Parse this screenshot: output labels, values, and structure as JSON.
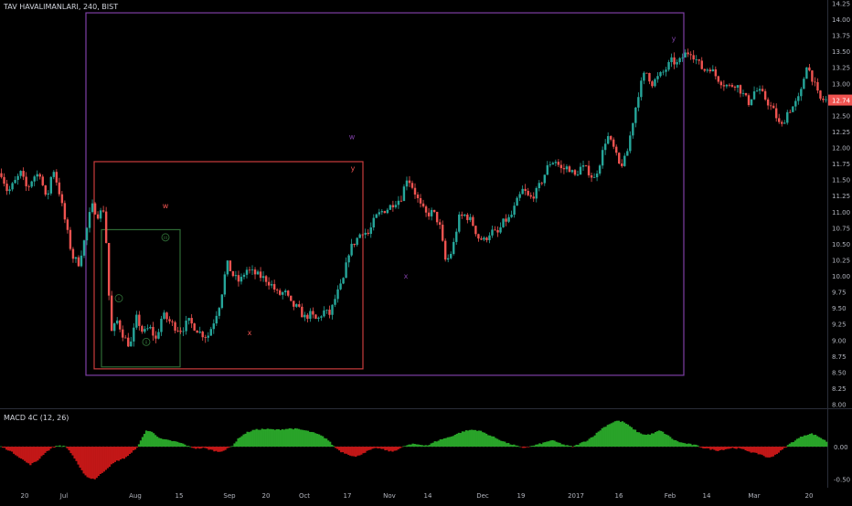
{
  "header": {
    "symbol": "TAV HAVALIMANLARI, 240, BIST"
  },
  "colors": {
    "bull": "#26a69a",
    "bear": "#ef5350",
    "purple": "#7e3fa5",
    "red_box": "#c93c3c",
    "green_box": "#2e6b35",
    "macd_up": "#29a329",
    "macd_down": "#c21717",
    "last_price_bg": "#ef5350"
  },
  "macd": {
    "label": "MACD 4C (12, 26)"
  },
  "chart_data": [
    {
      "type": "candlestick",
      "title": "TAV HAVALIMANLARI, 240, BIST",
      "x_tick_labels": [
        "20",
        "Jul",
        "Aug",
        "15",
        "Sep",
        "20",
        "Oct",
        "17",
        "Nov",
        "14",
        "Dec",
        "19",
        "2017",
        "16",
        "Feb",
        "14",
        "Mar",
        "20"
      ],
      "y_ticks": [
        14.25,
        14.0,
        13.75,
        13.5,
        13.25,
        13.0,
        12.75,
        12.5,
        12.25,
        12.0,
        11.75,
        11.5,
        11.25,
        11.0,
        10.75,
        10.5,
        10.25,
        10.0,
        9.75,
        9.5,
        9.25,
        9.0,
        8.75,
        8.5,
        8.25,
        8.0
      ],
      "y_tick_labels": [
        "14.25",
        "14.00",
        "13.75",
        "13.50",
        "13.25",
        "13.00",
        "12.75",
        "12.50",
        "12.25",
        "12.00",
        "11.75",
        "11.50",
        "11.25",
        "11.00",
        "10.75",
        "10.50",
        "10.25",
        "10.00",
        "9.75",
        "9.50",
        "9.25",
        "9.00",
        "8.75",
        "8.50",
        "8.25",
        "8.00"
      ],
      "ylim": [
        7.95,
        14.3
      ],
      "last_price": "12.74",
      "price_path": [
        11.6,
        11.3,
        11.45,
        11.6,
        11.35,
        11.55,
        11.6,
        11.15,
        11.7,
        11.3,
        10.8,
        10.3,
        10.2,
        10.6,
        11.1,
        10.95,
        11.05,
        9.1,
        9.3,
        9.05,
        8.9,
        9.35,
        9.1,
        9.2,
        9.0,
        9.4,
        9.3,
        9.2,
        9.15,
        9.3,
        9.2,
        9.1,
        9.05,
        9.3,
        9.6,
        10.2,
        10.0,
        9.9,
        10.1,
        10.05,
        10.0,
        9.95,
        9.85,
        9.7,
        9.75,
        9.55,
        9.5,
        9.35,
        9.4,
        9.3,
        9.45,
        9.4,
        9.7,
        9.9,
        10.4,
        10.55,
        10.7,
        10.65,
        10.9,
        11.0,
        11.05,
        11.15,
        11.2,
        11.55,
        11.35,
        11.1,
        10.95,
        11.0,
        10.8,
        10.2,
        10.4,
        10.9,
        10.95,
        10.85,
        10.6,
        10.55,
        10.7,
        10.65,
        10.85,
        10.9,
        11.15,
        11.35,
        11.2,
        11.3,
        11.5,
        11.75,
        11.8,
        11.65,
        11.7,
        11.55,
        11.7,
        11.65,
        11.5,
        11.8,
        12.2,
        12.0,
        11.7,
        11.85,
        12.4,
        12.9,
        13.2,
        13.0,
        13.1,
        13.2,
        13.35,
        13.3,
        13.45,
        13.5,
        13.35,
        13.2,
        13.25,
        13.1,
        13.0,
        12.95,
        13.0,
        12.85,
        12.7,
        12.9,
        12.85,
        12.7,
        12.55,
        12.3,
        12.55,
        12.65,
        12.8,
        13.3,
        13.05,
        12.75,
        12.74
      ],
      "annotations": [
        {
          "text": "w",
          "price": 11.1,
          "color": "#ef5350"
        },
        {
          "text": "x",
          "price": 9.12,
          "color": "#ef5350"
        },
        {
          "text": "y",
          "price": 11.68,
          "color": "#ef5350"
        },
        {
          "text": "w",
          "price": 12.17,
          "color": "#7e3fa5"
        },
        {
          "text": "x",
          "price": 10.0,
          "color": "#7e3fa5"
        },
        {
          "text": "y",
          "price": 13.7,
          "color": "#7e3fa5"
        },
        {
          "text": "i",
          "price": 9.65,
          "color": "#2e6b35"
        },
        {
          "text": "ii",
          "price": 8.97,
          "color": "#2e6b35"
        },
        {
          "text": "iii",
          "price": 10.6,
          "color": "#2e6b35"
        }
      ],
      "boxes": [
        {
          "label": "purple",
          "top": 14.1,
          "bottom": 8.45
        },
        {
          "label": "red",
          "top": 11.78,
          "bottom": 8.55
        },
        {
          "label": "green",
          "top": 10.72,
          "bottom": 8.58
        }
      ]
    },
    {
      "type": "histogram",
      "title": "MACD 4C (12, 26)",
      "y_ticks": [
        0.0,
        -0.5
      ],
      "y_tick_labels": [
        "0.00",
        "-0.50"
      ],
      "ylim": [
        -0.62,
        0.55
      ],
      "profile": [
        0.0,
        -0.05,
        -0.12,
        -0.2,
        -0.28,
        -0.22,
        -0.1,
        -0.02,
        0.02,
        0.0,
        -0.15,
        -0.35,
        -0.48,
        -0.5,
        -0.4,
        -0.3,
        -0.22,
        -0.18,
        -0.1,
        0.02,
        0.25,
        0.22,
        0.12,
        0.1,
        0.08,
        0.05,
        0.0,
        -0.03,
        -0.02,
        -0.05,
        -0.08,
        -0.05,
        0.02,
        0.15,
        0.22,
        0.26,
        0.27,
        0.27,
        0.26,
        0.27,
        0.28,
        0.27,
        0.25,
        0.22,
        0.18,
        0.12,
        0.0,
        -0.08,
        -0.12,
        -0.16,
        -0.1,
        -0.05,
        -0.02,
        -0.05,
        -0.08,
        -0.03,
        0.02,
        0.04,
        0.03,
        0.02,
        0.08,
        0.12,
        0.15,
        0.2,
        0.24,
        0.26,
        0.25,
        0.2,
        0.15,
        0.1,
        0.05,
        0.02,
        -0.02,
        0.0,
        0.03,
        0.06,
        0.1,
        0.06,
        0.02,
        0.0,
        0.05,
        0.1,
        0.18,
        0.28,
        0.35,
        0.4,
        0.38,
        0.3,
        0.22,
        0.18,
        0.2,
        0.25,
        0.18,
        0.1,
        0.06,
        0.04,
        0.02,
        -0.02,
        -0.04,
        -0.06,
        -0.04,
        -0.02,
        -0.03,
        -0.06,
        -0.1,
        -0.12,
        -0.18,
        -0.12,
        -0.04,
        0.05,
        0.12,
        0.18,
        0.2,
        0.15,
        0.08
      ]
    }
  ]
}
